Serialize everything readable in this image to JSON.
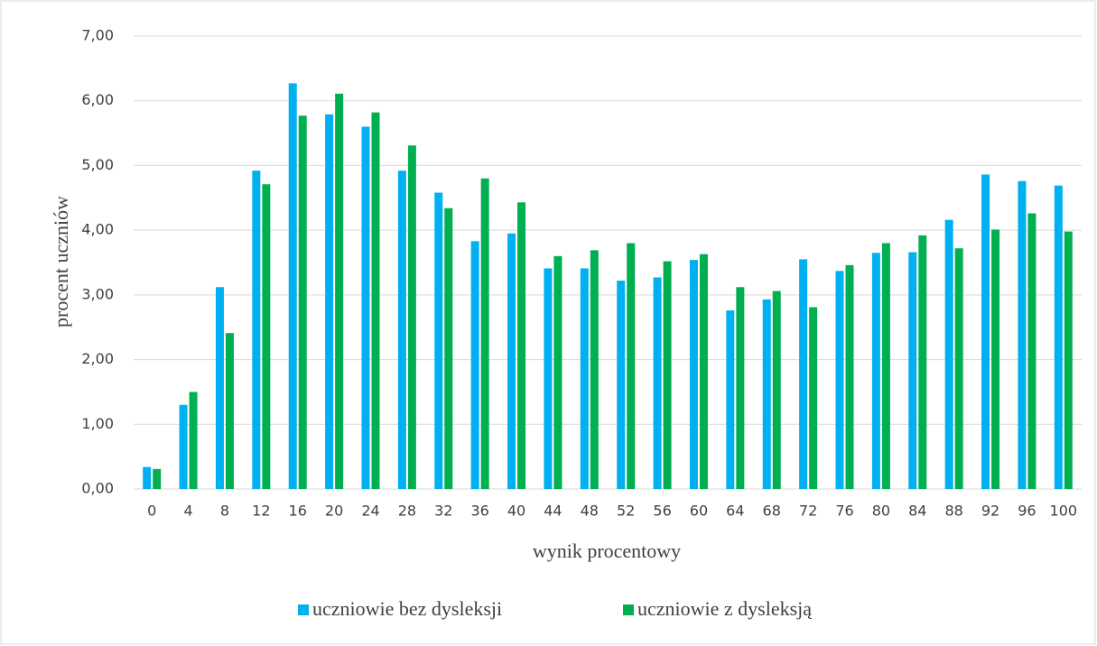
{
  "chart_data": {
    "type": "bar",
    "xlabel": "wynik procentowy",
    "ylabel": "procent uczniów",
    "categories": [
      "0",
      "4",
      "8",
      "12",
      "16",
      "20",
      "24",
      "28",
      "32",
      "36",
      "40",
      "44",
      "48",
      "52",
      "56",
      "60",
      "64",
      "68",
      "72",
      "76",
      "80",
      "84",
      "88",
      "92",
      "96",
      "100"
    ],
    "series": [
      {
        "name": "uczniowie bez dysleksji",
        "color": "#00b0f0",
        "values": [
          0.34,
          1.3,
          3.12,
          4.92,
          6.27,
          5.79,
          5.6,
          4.92,
          4.58,
          3.83,
          3.95,
          3.41,
          3.41,
          3.22,
          3.27,
          3.54,
          2.76,
          2.93,
          3.55,
          3.37,
          3.65,
          3.66,
          4.16,
          4.86,
          4.76,
          4.69
        ]
      },
      {
        "name": "uczniowie z dysleksją",
        "color": "#00b050",
        "values": [
          0.31,
          1.5,
          2.41,
          4.71,
          5.77,
          6.11,
          5.82,
          5.31,
          4.34,
          4.8,
          4.43,
          3.6,
          3.69,
          3.8,
          3.52,
          3.63,
          3.12,
          3.06,
          2.81,
          3.46,
          3.8,
          3.92,
          3.72,
          4.01,
          4.26,
          3.98
        ]
      }
    ],
    "ylim": [
      0,
      7
    ],
    "yticks": [
      {
        "value": 0,
        "label": "0,00"
      },
      {
        "value": 1,
        "label": "1,00"
      },
      {
        "value": 2,
        "label": "2,00"
      },
      {
        "value": 3,
        "label": "3,00"
      },
      {
        "value": 4,
        "label": "4,00"
      },
      {
        "value": 5,
        "label": "5,00"
      },
      {
        "value": 6,
        "label": "6,00"
      },
      {
        "value": 7,
        "label": "7,00"
      }
    ],
    "grid": true,
    "legend": "bottom"
  }
}
